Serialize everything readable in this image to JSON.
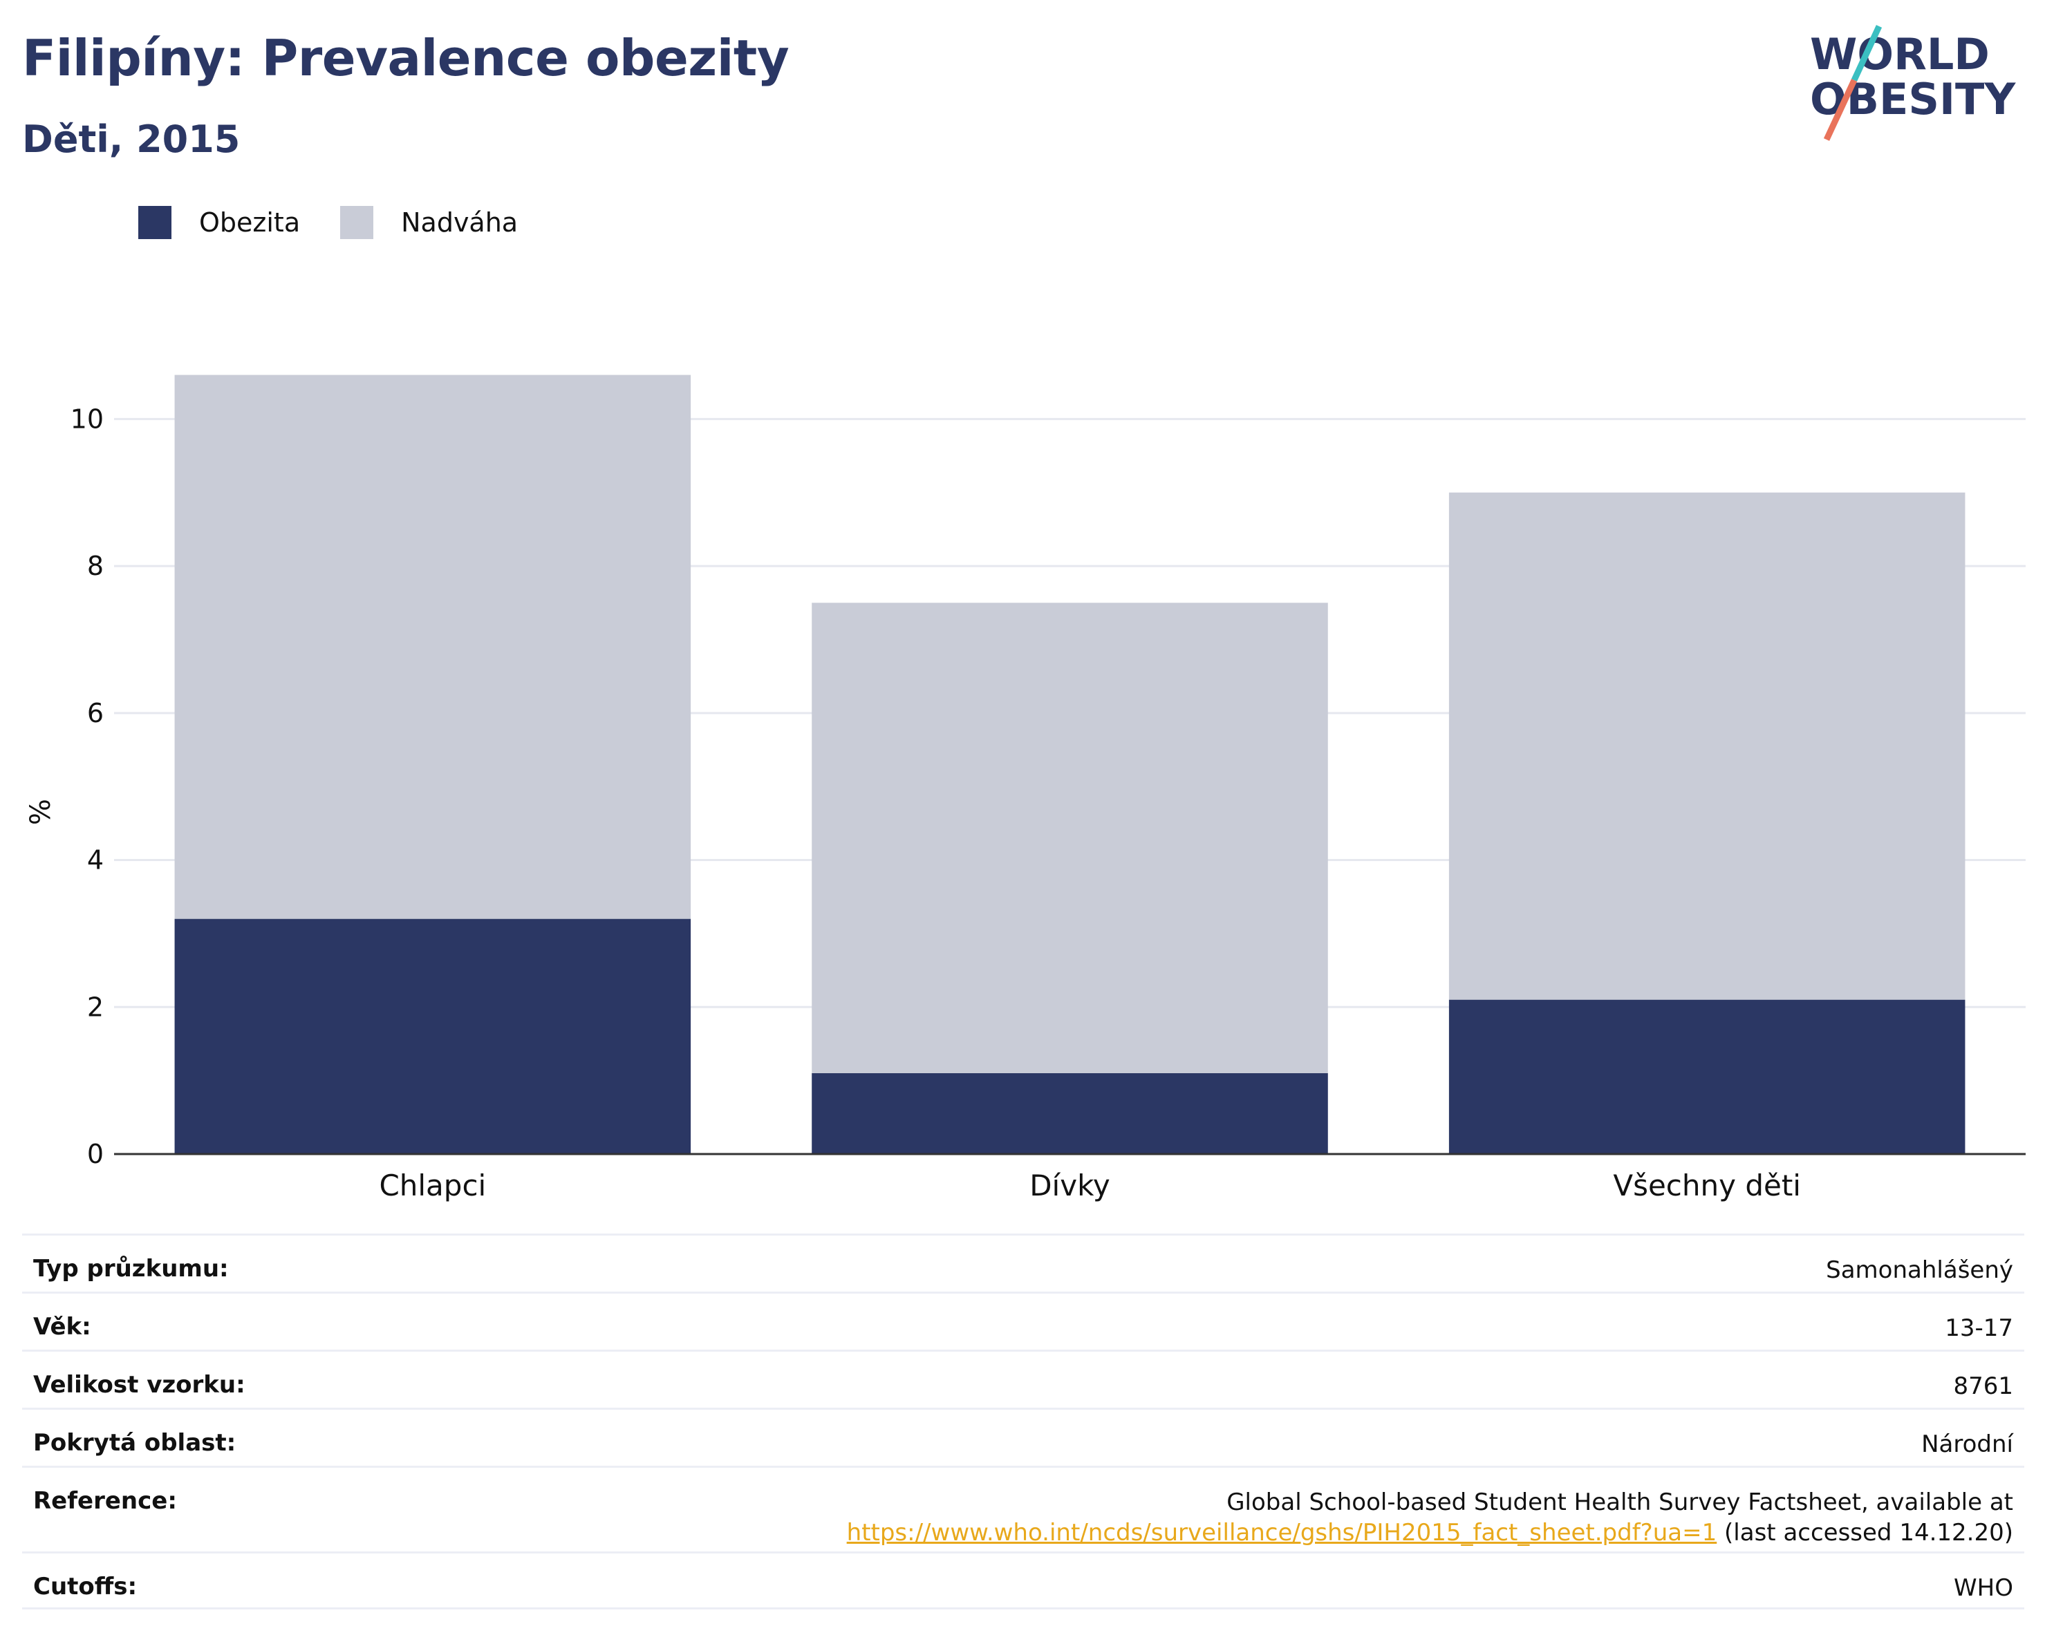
{
  "header": {
    "title": "Filipíny: Prevalence obezity",
    "subtitle": "Děti, 2015"
  },
  "logo": {
    "line1": "WORLD",
    "line2": "OBESITY"
  },
  "legend": [
    {
      "label": "Obezita",
      "color": "#2b3764"
    },
    {
      "label": "Nadváha",
      "color": "#c9ccd7"
    }
  ],
  "chart_data": {
    "type": "bar",
    "stacked": true,
    "categories": [
      "Chlapci",
      "Dívky",
      "Všechny děti"
    ],
    "series": [
      {
        "name": "Obezita",
        "values": [
          3.2,
          1.1,
          2.1
        ],
        "color": "#2b3764"
      },
      {
        "name": "Nadváha",
        "values": [
          7.4,
          6.4,
          6.9
        ],
        "color": "#c9ccd7"
      }
    ],
    "ylabel": "%",
    "yticks": [
      "0",
      "2",
      "4",
      "6",
      "8",
      "10"
    ],
    "ylim": [
      0,
      11
    ],
    "grid": true
  },
  "info": {
    "rows": [
      {
        "key": "Typ průzkumu:",
        "value": "Samonahlášený"
      },
      {
        "key": "Věk:",
        "value": "13-17"
      },
      {
        "key": "Velikost vzorku:",
        "value": "8761"
      },
      {
        "key": "Pokrytá oblast:",
        "value": "Národní"
      }
    ],
    "reference_key": "Reference:",
    "reference_line1": "Global School-based Student Health Survey Factsheet, available at",
    "reference_link": "https://www.who.int/ncds/surveillance/gshs/PIH2015_fact_sheet.pdf?ua=1",
    "reference_suffix": " (last accessed 14.12.20)",
    "cutoffs_key": "Cutoffs:",
    "cutoffs_value": "WHO"
  }
}
